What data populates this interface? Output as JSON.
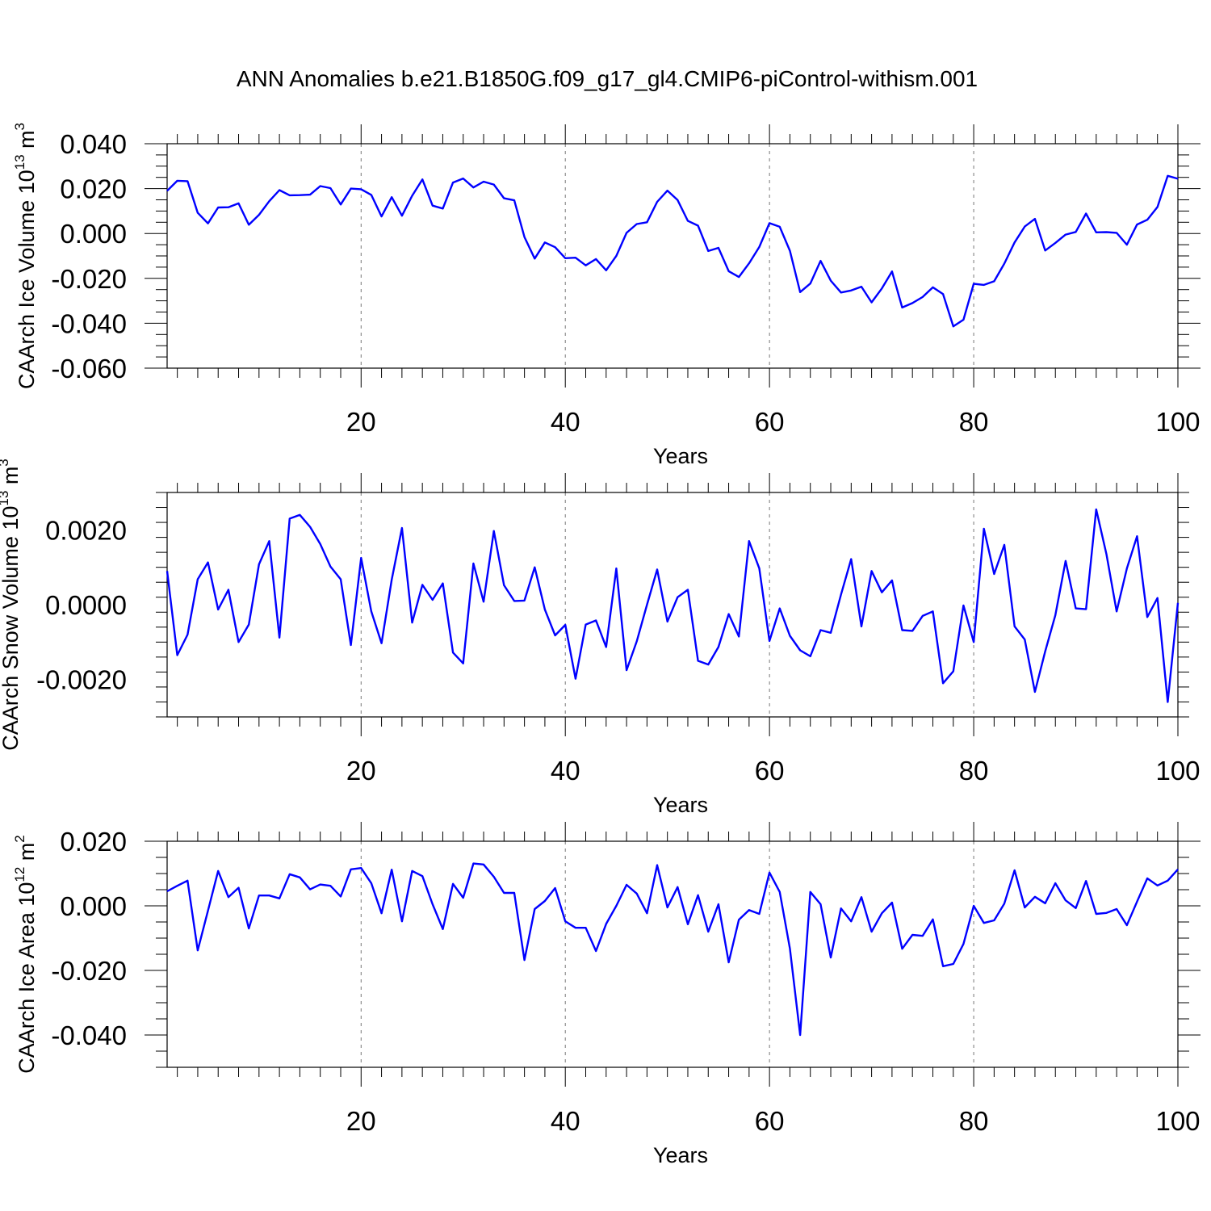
{
  "title": "ANN Anomalies b.e21.B1850G.f09_g17_gl4.CMIP6-piControl-withism.001",
  "series_color": "#0000ff",
  "chart_data": [
    {
      "type": "line",
      "ylabel": {
        "main": "CAArch Ice Volume 10",
        "exp": "13",
        "unit": " m",
        "unit_exp": "3"
      },
      "xlabel": "Years",
      "xlim": [
        1,
        100
      ],
      "ylim": [
        -0.06,
        0.04
      ],
      "xticks": [
        20,
        40,
        60,
        80,
        100
      ],
      "xtick_labels": [
        "20",
        "40",
        "60",
        "80",
        "100"
      ],
      "yticks": [
        0.04,
        0.02,
        0.0,
        -0.02,
        -0.04,
        -0.06
      ],
      "ytick_labels": [
        "0.040",
        "0.020",
        "0.000",
        "-0.020",
        "-0.040",
        "-0.060"
      ],
      "yminor_step": 0.005,
      "grid": "dashed vertical at major x ticks",
      "x_start": 1,
      "values": [
        0.019,
        0.0235,
        0.0233,
        0.0092,
        0.0045,
        0.0116,
        0.0117,
        0.0134,
        0.0039,
        0.0083,
        0.0144,
        0.0193,
        0.017,
        0.0171,
        0.0173,
        0.0211,
        0.0202,
        0.0129,
        0.02,
        0.0197,
        0.0172,
        0.0076,
        0.0162,
        0.0079,
        0.0168,
        0.0241,
        0.0124,
        0.0111,
        0.0227,
        0.0245,
        0.0205,
        0.0231,
        0.0218,
        0.0157,
        0.0148,
        -0.0016,
        -0.0112,
        -0.004,
        -0.0061,
        -0.011,
        -0.0108,
        -0.0142,
        -0.0114,
        -0.0164,
        -0.01,
        0.0003,
        0.0042,
        0.005,
        0.0141,
        0.0191,
        0.0149,
        0.0056,
        0.0035,
        -0.0078,
        -0.0064,
        -0.0168,
        -0.0194,
        -0.0133,
        -0.006,
        0.0046,
        0.003,
        -0.0077,
        -0.0261,
        -0.0223,
        -0.0122,
        -0.021,
        -0.0263,
        -0.0254,
        -0.0237,
        -0.0307,
        -0.0245,
        -0.0169,
        -0.033,
        -0.031,
        -0.0283,
        -0.024,
        -0.027,
        -0.0414,
        -0.0384,
        -0.0224,
        -0.0229,
        -0.0213,
        -0.0134,
        -0.004,
        0.0031,
        0.0065,
        -0.0076,
        -0.0042,
        -0.0005,
        0.0007,
        0.0089,
        0.0005,
        0.0006,
        0.0003,
        -0.005,
        0.004,
        0.0061,
        0.0118,
        0.0257,
        0.0244
      ]
    },
    {
      "type": "line",
      "ylabel": {
        "main": "CAArch Snow Volume 10",
        "exp": "13",
        "unit": " m",
        "unit_exp": "3"
      },
      "xlabel": "Years",
      "xlim": [
        1,
        100
      ],
      "ylim": [
        -0.003,
        0.003
      ],
      "xticks": [
        20,
        40,
        60,
        80,
        100
      ],
      "xtick_labels": [
        "20",
        "40",
        "60",
        "80",
        "100"
      ],
      "yticks": [
        0.002,
        0.0,
        -0.002
      ],
      "ytick_labels": [
        "0.0020",
        "0.0000",
        "-0.0020"
      ],
      "yminor_step": 0.0004,
      "grid": "dashed vertical at major x ticks",
      "x_start": 1,
      "values": [
        0.0009,
        -0.00135,
        -0.0008,
        0.00068,
        0.00113,
        -0.00013,
        0.0004,
        -0.001,
        -0.00053,
        0.00108,
        0.0017,
        -0.00088,
        0.0023,
        0.0024,
        0.00208,
        0.00162,
        0.00102,
        0.00068,
        -0.00108,
        0.00125,
        -0.00018,
        -0.00103,
        0.00067,
        0.00205,
        -0.00048,
        0.00053,
        0.00013,
        0.00057,
        -0.00128,
        -0.00157,
        0.0011,
        8e-05,
        0.00197,
        0.00052,
        0.0001,
        0.00011,
        0.001,
        -0.00013,
        -0.00082,
        -0.00054,
        -0.00198,
        -0.00053,
        -0.00042,
        -0.00113,
        0.00097,
        -0.00175,
        -0.00098,
        0.0,
        0.00094,
        -0.00045,
        0.0002,
        0.0004,
        -0.0015,
        -0.0016,
        -0.00113,
        -0.00025,
        -0.00085,
        0.0017,
        0.00097,
        -0.00097,
        -0.0001,
        -0.00083,
        -0.00122,
        -0.00138,
        -0.00068,
        -0.00075,
        0.00027,
        0.00122,
        -0.00058,
        0.0009,
        0.00033,
        0.00065,
        -0.00068,
        -0.0007,
        -0.0003,
        -0.00018,
        -0.0021,
        -0.00178,
        -2e-05,
        -0.001,
        0.00203,
        0.00082,
        0.0016,
        -0.00058,
        -0.00093,
        -0.00233,
        -0.00125,
        -0.00028,
        0.00117,
        -0.0001,
        -0.00012,
        0.00255,
        0.00135,
        -0.00018,
        0.00097,
        0.00183,
        -0.00033,
        0.00018,
        -0.0026,
        5e-05
      ]
    },
    {
      "type": "line",
      "ylabel": {
        "main": "CAArch Ice Area 10",
        "exp": "12",
        "unit": " m",
        "unit_exp": "2"
      },
      "xlabel": "Years",
      "xlim": [
        1,
        100
      ],
      "ylim": [
        -0.05,
        0.02
      ],
      "xticks": [
        20,
        40,
        60,
        80,
        100
      ],
      "xtick_labels": [
        "20",
        "40",
        "60",
        "80",
        "100"
      ],
      "yticks": [
        0.02,
        0.0,
        -0.02,
        -0.04
      ],
      "ytick_labels": [
        "0.020",
        "0.000",
        "-0.020",
        "-0.040"
      ],
      "yminor_step": 0.005,
      "grid": "dashed vertical at major x ticks",
      "x_start": 1,
      "values": [
        0.0045,
        0.0062,
        0.0078,
        -0.0138,
        -0.0015,
        0.0108,
        0.0027,
        0.0056,
        -0.007,
        0.0032,
        0.0032,
        0.0023,
        0.0098,
        0.0088,
        0.0051,
        0.0066,
        0.0062,
        0.0029,
        0.0113,
        0.0117,
        0.007,
        -0.0023,
        0.0112,
        -0.0048,
        0.0108,
        0.0092,
        0.0005,
        -0.0072,
        0.0068,
        0.0025,
        0.0131,
        0.0128,
        0.009,
        0.004,
        0.004,
        -0.0168,
        -0.001,
        0.0015,
        0.0055,
        -0.0048,
        -0.0068,
        -0.0068,
        -0.014,
        -0.0056,
        0.0,
        0.0065,
        0.0038,
        -0.0023,
        0.0126,
        -0.0005,
        0.0058,
        -0.0057,
        0.0033,
        -0.008,
        0.0005,
        -0.0175,
        -0.0043,
        -0.0013,
        -0.0025,
        0.0103,
        0.0043,
        -0.0132,
        -0.04,
        0.0043,
        0.0005,
        -0.016,
        -0.0008,
        -0.0048,
        0.0027,
        -0.008,
        -0.0023,
        0.001,
        -0.0133,
        -0.009,
        -0.0093,
        -0.0042,
        -0.0187,
        -0.018,
        -0.0118,
        0.0,
        -0.0053,
        -0.0045,
        0.0007,
        0.011,
        -0.0005,
        0.0028,
        0.0008,
        0.007,
        0.0017,
        -0.0007,
        0.0077,
        -0.0025,
        -0.0022,
        -0.001,
        -0.006,
        0.0013,
        0.0085,
        0.0063,
        0.0078,
        0.0113
      ]
    }
  ]
}
